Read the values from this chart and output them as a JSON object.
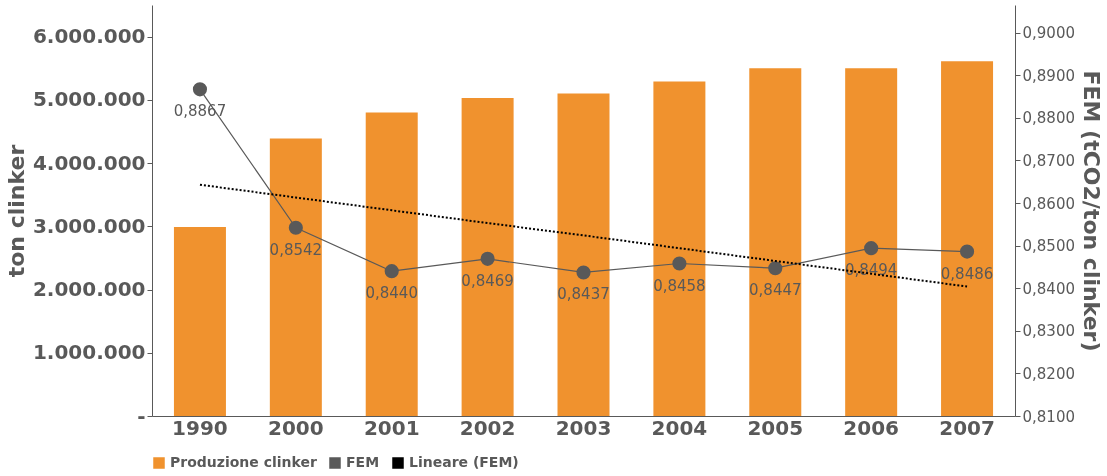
{
  "chart_data": {
    "type": "bar",
    "categories": [
      "1990",
      "2000",
      "2001",
      "2002",
      "2003",
      "2004",
      "2005",
      "2006",
      "2007"
    ],
    "ylabel": "ton clinker",
    "y2label": "FEM (tCO2/ton clinker)",
    "ylim": [
      0,
      6500000
    ],
    "yticks": [
      {
        "value": 0,
        "label": "-"
      },
      {
        "value": 1000000,
        "label": "1.000.000"
      },
      {
        "value": 2000000,
        "label": "2.000.000"
      },
      {
        "value": 3000000,
        "label": "3.000.000"
      },
      {
        "value": 4000000,
        "label": "4.000.000"
      },
      {
        "value": 5000000,
        "label": "5.000.000"
      },
      {
        "value": 6000000,
        "label": "6.000.000"
      }
    ],
    "y2lim": [
      0.81,
      0.9065
    ],
    "y2ticks": [
      {
        "value": 0.81,
        "label": "0,8100"
      },
      {
        "value": 0.82,
        "label": "0,8200"
      },
      {
        "value": 0.83,
        "label": "0,8300"
      },
      {
        "value": 0.84,
        "label": "0,8400"
      },
      {
        "value": 0.85,
        "label": "0,8500"
      },
      {
        "value": 0.86,
        "label": "0,8600"
      },
      {
        "value": 0.87,
        "label": "0,8700"
      },
      {
        "value": 0.88,
        "label": "0,8800"
      },
      {
        "value": 0.89,
        "label": "0,8900"
      },
      {
        "value": 0.9,
        "label": "0,9000"
      }
    ],
    "grid": false,
    "legend": "bottom",
    "series": [
      {
        "name": "Produzione clinker",
        "color": "#f0922e",
        "values": [
          2990000,
          4390000,
          4800000,
          5030000,
          5100000,
          5290000,
          5500000,
          5500000,
          5610000
        ]
      },
      {
        "name": "FEM",
        "type": "line",
        "axis": "y2",
        "color": "#595959",
        "marker": "circle",
        "line_style": "solid",
        "values": [
          0.8867,
          0.8542,
          0.844,
          0.8469,
          0.8437,
          0.8458,
          0.8447,
          0.8494,
          0.8486
        ],
        "value_labels": [
          "0,8867",
          "0,8542",
          "0,8440",
          "0,8469",
          "0,8437",
          "0,8458",
          "0,8447",
          "0,8494",
          "0,8486"
        ]
      },
      {
        "name": "Lineare (FEM)",
        "type": "line",
        "axis": "y2",
        "color": "#000000",
        "line_style": "dotted",
        "marker": "none",
        "values": [
          0.8643,
          0.8613,
          0.8583,
          0.8553,
          0.8524,
          0.8494,
          0.8464,
          0.8434,
          0.8404
        ]
      }
    ]
  }
}
